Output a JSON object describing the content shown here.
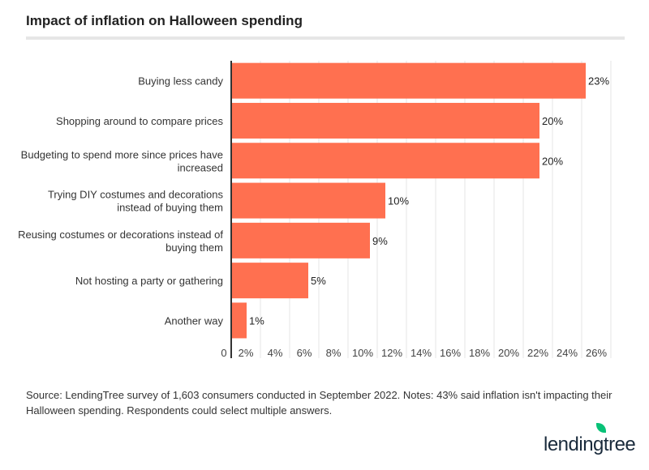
{
  "title": "Impact of inflation on Halloween spending",
  "note": "Source: LendingTree survey of 1,603 consumers conducted in September 2022. Notes: 43% said inflation isn't impacting their Halloween spending. Respondents could select multiple answers.",
  "logo": "lendingtree",
  "chart_data": {
    "type": "bar",
    "orientation": "horizontal",
    "categories": [
      [
        "Buying less candy"
      ],
      [
        "Shopping around to compare prices"
      ],
      [
        "Budgeting to spend more since prices have",
        "increased"
      ],
      [
        "Trying DIY costumes and decorations",
        "instead of buying them"
      ],
      [
        "Reusing costumes or decorations instead of",
        "buying them"
      ],
      [
        "Not hosting a party or gathering"
      ],
      [
        "Another way"
      ]
    ],
    "values": [
      23,
      20,
      20,
      10,
      9,
      5,
      1
    ],
    "data_labels": [
      "23%",
      "20%",
      "20%",
      "10%",
      "9%",
      "5%",
      "1%"
    ],
    "xlim": [
      0,
      26
    ],
    "xticks": [
      "0",
      "2%",
      "4%",
      "6%",
      "8%",
      "10%",
      "12%",
      "14%",
      "16%",
      "18%",
      "20%",
      "22%",
      "24%",
      "26%"
    ],
    "grid": true,
    "bar_color": "#ff7050"
  }
}
